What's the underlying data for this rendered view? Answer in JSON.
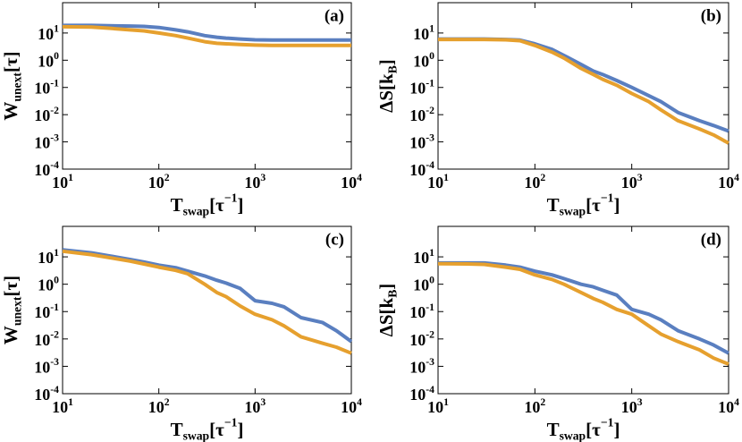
{
  "chart_data": [
    {
      "type": "line",
      "label": "(a)",
      "ylabel": [
        {
          "text": "W"
        },
        {
          "text": "unext",
          "shift": "sub"
        },
        {
          "text": "[τ]"
        }
      ],
      "xlabel": [
        {
          "text": "T"
        },
        {
          "text": "swap",
          "shift": "sub"
        },
        {
          "text": "[τ"
        },
        {
          "text": "−1",
          "shift": "sup"
        },
        {
          "text": "]"
        }
      ],
      "log_x": true,
      "log_y": true,
      "xlim": [
        10,
        10000
      ],
      "ylim": [
        0.0001,
        130
      ],
      "xticks": [
        {
          "value": 10,
          "label": [
            {
              "text": "10"
            },
            {
              "text": "1",
              "shift": "sup"
            }
          ]
        },
        {
          "value": 100,
          "label": [
            {
              "text": "10"
            },
            {
              "text": "2",
              "shift": "sup"
            }
          ]
        },
        {
          "value": 1000,
          "label": [
            {
              "text": "10"
            },
            {
              "text": "3",
              "shift": "sup"
            }
          ]
        },
        {
          "value": 10000,
          "label": [
            {
              "text": "10"
            },
            {
              "text": "4",
              "shift": "sup"
            }
          ]
        }
      ],
      "yticks": [
        {
          "value": 10,
          "label": [
            {
              "text": "10"
            },
            {
              "text": "1",
              "shift": "sup"
            }
          ]
        },
        {
          "value": 1,
          "label": [
            {
              "text": "10"
            },
            {
              "text": "0",
              "shift": "sup"
            }
          ]
        },
        {
          "value": 0.1,
          "label": [
            {
              "text": "10"
            },
            {
              "text": "-1",
              "shift": "sup"
            }
          ]
        },
        {
          "value": 0.01,
          "label": [
            {
              "text": "10"
            },
            {
              "text": "-2",
              "shift": "sup"
            }
          ]
        },
        {
          "value": 0.001,
          "label": [
            {
              "text": "10"
            },
            {
              "text": "-3",
              "shift": "sup"
            }
          ]
        },
        {
          "value": 0.0001,
          "label": [
            {
              "text": "10"
            },
            {
              "text": "-4",
              "shift": "sup"
            }
          ]
        }
      ],
      "x": [
        10,
        20,
        30,
        50,
        70,
        100,
        150,
        200,
        300,
        400,
        500,
        700,
        1000,
        1500,
        2000,
        3000,
        5000,
        7000,
        10000
      ],
      "series": [
        {
          "color": "#5a7fc0",
          "values": [
            19,
            19,
            18.5,
            18,
            17.5,
            16,
            13,
            11,
            8,
            7,
            6.5,
            6,
            5.6,
            5.5,
            5.5,
            5.5,
            5.5,
            5.5,
            5.5
          ]
        },
        {
          "color": "#e6a02e",
          "values": [
            17,
            16.5,
            15,
            13,
            12,
            10,
            8,
            6.5,
            4.8,
            4.2,
            4,
            3.8,
            3.6,
            3.5,
            3.5,
            3.5,
            3.5,
            3.5,
            3.5
          ]
        }
      ]
    },
    {
      "type": "line",
      "label": "(b)",
      "ylabel": [
        {
          "text": "ΔS[k"
        },
        {
          "text": "B",
          "shift": "sub"
        },
        {
          "text": "]"
        }
      ],
      "xlabel": [
        {
          "text": "T"
        },
        {
          "text": "swap",
          "shift": "sub"
        },
        {
          "text": "[τ"
        },
        {
          "text": "−1",
          "shift": "sup"
        },
        {
          "text": "]"
        }
      ],
      "log_x": true,
      "log_y": true,
      "xlim": [
        10,
        10000
      ],
      "ylim": [
        0.0001,
        130
      ],
      "xticks": [
        {
          "value": 10,
          "label": [
            {
              "text": "10"
            },
            {
              "text": "1",
              "shift": "sup"
            }
          ]
        },
        {
          "value": 100,
          "label": [
            {
              "text": "10"
            },
            {
              "text": "2",
              "shift": "sup"
            }
          ]
        },
        {
          "value": 1000,
          "label": [
            {
              "text": "10"
            },
            {
              "text": "3",
              "shift": "sup"
            }
          ]
        },
        {
          "value": 10000,
          "label": [
            {
              "text": "10"
            },
            {
              "text": "4",
              "shift": "sup"
            }
          ]
        }
      ],
      "yticks": [
        {
          "value": 10,
          "label": [
            {
              "text": "10"
            },
            {
              "text": "1",
              "shift": "sup"
            }
          ]
        },
        {
          "value": 1,
          "label": [
            {
              "text": "10"
            },
            {
              "text": "0",
              "shift": "sup"
            }
          ]
        },
        {
          "value": 0.1,
          "label": [
            {
              "text": "10"
            },
            {
              "text": "-1",
              "shift": "sup"
            }
          ]
        },
        {
          "value": 0.01,
          "label": [
            {
              "text": "10"
            },
            {
              "text": "-2",
              "shift": "sup"
            }
          ]
        },
        {
          "value": 0.001,
          "label": [
            {
              "text": "10"
            },
            {
              "text": "-3",
              "shift": "sup"
            }
          ]
        },
        {
          "value": 0.0001,
          "label": [
            {
              "text": "10"
            },
            {
              "text": "-4",
              "shift": "sup"
            }
          ]
        }
      ],
      "x": [
        10,
        20,
        30,
        50,
        70,
        100,
        150,
        200,
        300,
        400,
        500,
        700,
        1000,
        1500,
        2000,
        3000,
        5000,
        7000,
        10000
      ],
      "series": [
        {
          "color": "#5a7fc0",
          "values": [
            6,
            6,
            6,
            5.8,
            5.5,
            4,
            2.5,
            1.5,
            0.7,
            0.4,
            0.3,
            0.18,
            0.1,
            0.05,
            0.03,
            0.012,
            0.006,
            0.004,
            0.0025
          ]
        },
        {
          "color": "#e6a02e",
          "values": [
            5.8,
            5.8,
            5.8,
            5.6,
            5.2,
            3.5,
            2,
            1.2,
            0.5,
            0.3,
            0.2,
            0.12,
            0.06,
            0.03,
            0.015,
            0.006,
            0.003,
            0.0018,
            0.0009
          ]
        }
      ]
    },
    {
      "type": "line",
      "label": "(c)",
      "ylabel": [
        {
          "text": "W"
        },
        {
          "text": "unext",
          "shift": "sub"
        },
        {
          "text": "[τ]"
        }
      ],
      "xlabel": [
        {
          "text": "T"
        },
        {
          "text": "swap",
          "shift": "sub"
        },
        {
          "text": "[τ"
        },
        {
          "text": "−1",
          "shift": "sup"
        },
        {
          "text": "]"
        }
      ],
      "log_x": true,
      "log_y": true,
      "xlim": [
        10,
        10000
      ],
      "ylim": [
        0.0001,
        130
      ],
      "xticks": [
        {
          "value": 10,
          "label": [
            {
              "text": "10"
            },
            {
              "text": "1",
              "shift": "sup"
            }
          ]
        },
        {
          "value": 100,
          "label": [
            {
              "text": "10"
            },
            {
              "text": "2",
              "shift": "sup"
            }
          ]
        },
        {
          "value": 1000,
          "label": [
            {
              "text": "10"
            },
            {
              "text": "3",
              "shift": "sup"
            }
          ]
        },
        {
          "value": 10000,
          "label": [
            {
              "text": "10"
            },
            {
              "text": "4",
              "shift": "sup"
            }
          ]
        }
      ],
      "yticks": [
        {
          "value": 10,
          "label": [
            {
              "text": "10"
            },
            {
              "text": "1",
              "shift": "sup"
            }
          ]
        },
        {
          "value": 1,
          "label": [
            {
              "text": "10"
            },
            {
              "text": "0",
              "shift": "sup"
            }
          ]
        },
        {
          "value": 0.1,
          "label": [
            {
              "text": "10"
            },
            {
              "text": "-1",
              "shift": "sup"
            }
          ]
        },
        {
          "value": 0.01,
          "label": [
            {
              "text": "10"
            },
            {
              "text": "-2",
              "shift": "sup"
            }
          ]
        },
        {
          "value": 0.001,
          "label": [
            {
              "text": "10"
            },
            {
              "text": "-3",
              "shift": "sup"
            }
          ]
        },
        {
          "value": 0.0001,
          "label": [
            {
              "text": "10"
            },
            {
              "text": "-4",
              "shift": "sup"
            }
          ]
        }
      ],
      "x": [
        10,
        20,
        30,
        50,
        70,
        100,
        150,
        200,
        300,
        400,
        500,
        700,
        1000,
        1500,
        2000,
        3000,
        5000,
        7000,
        10000
      ],
      "series": [
        {
          "color": "#5a7fc0",
          "values": [
            18,
            14,
            11,
            8,
            6.5,
            5,
            4,
            3,
            2,
            1.4,
            1.1,
            0.7,
            0.25,
            0.2,
            0.15,
            0.06,
            0.04,
            0.02,
            0.008
          ]
        },
        {
          "color": "#e6a02e",
          "values": [
            16,
            12,
            9.5,
            7,
            5.5,
            4.2,
            3.2,
            2.4,
            1,
            0.5,
            0.35,
            0.16,
            0.08,
            0.05,
            0.03,
            0.012,
            0.007,
            0.005,
            0.003
          ]
        }
      ]
    },
    {
      "type": "line",
      "label": "(d)",
      "ylabel": [
        {
          "text": "ΔS[k"
        },
        {
          "text": "B",
          "shift": "sub"
        },
        {
          "text": "]"
        }
      ],
      "xlabel": [
        {
          "text": "T"
        },
        {
          "text": "swap",
          "shift": "sub"
        },
        {
          "text": "[τ"
        },
        {
          "text": "−1",
          "shift": "sup"
        },
        {
          "text": "]"
        }
      ],
      "log_x": true,
      "log_y": true,
      "xlim": [
        10,
        10000
      ],
      "ylim": [
        0.0001,
        130
      ],
      "xticks": [
        {
          "value": 10,
          "label": [
            {
              "text": "10"
            },
            {
              "text": "1",
              "shift": "sup"
            }
          ]
        },
        {
          "value": 100,
          "label": [
            {
              "text": "10"
            },
            {
              "text": "2",
              "shift": "sup"
            }
          ]
        },
        {
          "value": 1000,
          "label": [
            {
              "text": "10"
            },
            {
              "text": "3",
              "shift": "sup"
            }
          ]
        },
        {
          "value": 10000,
          "label": [
            {
              "text": "10"
            },
            {
              "text": "4",
              "shift": "sup"
            }
          ]
        }
      ],
      "yticks": [
        {
          "value": 10,
          "label": [
            {
              "text": "10"
            },
            {
              "text": "1",
              "shift": "sup"
            }
          ]
        },
        {
          "value": 1,
          "label": [
            {
              "text": "10"
            },
            {
              "text": "0",
              "shift": "sup"
            }
          ]
        },
        {
          "value": 0.1,
          "label": [
            {
              "text": "10"
            },
            {
              "text": "-1",
              "shift": "sup"
            }
          ]
        },
        {
          "value": 0.01,
          "label": [
            {
              "text": "10"
            },
            {
              "text": "-2",
              "shift": "sup"
            }
          ]
        },
        {
          "value": 0.001,
          "label": [
            {
              "text": "10"
            },
            {
              "text": "-3",
              "shift": "sup"
            }
          ]
        },
        {
          "value": 0.0001,
          "label": [
            {
              "text": "10"
            },
            {
              "text": "-4",
              "shift": "sup"
            }
          ]
        }
      ],
      "x": [
        10,
        20,
        30,
        50,
        70,
        100,
        150,
        200,
        300,
        400,
        500,
        700,
        1000,
        1500,
        2000,
        3000,
        5000,
        7000,
        10000
      ],
      "series": [
        {
          "color": "#5a7fc0",
          "values": [
            6,
            6,
            6,
            5,
            4.2,
            3,
            2.2,
            1.6,
            1,
            0.8,
            0.6,
            0.4,
            0.12,
            0.08,
            0.05,
            0.02,
            0.01,
            0.006,
            0.003
          ]
        },
        {
          "color": "#e6a02e",
          "values": [
            5.6,
            5.5,
            5.3,
            4.2,
            3.5,
            2.2,
            1.5,
            1,
            0.5,
            0.3,
            0.22,
            0.12,
            0.08,
            0.03,
            0.015,
            0.008,
            0.004,
            0.002,
            0.0012
          ]
        }
      ]
    }
  ]
}
